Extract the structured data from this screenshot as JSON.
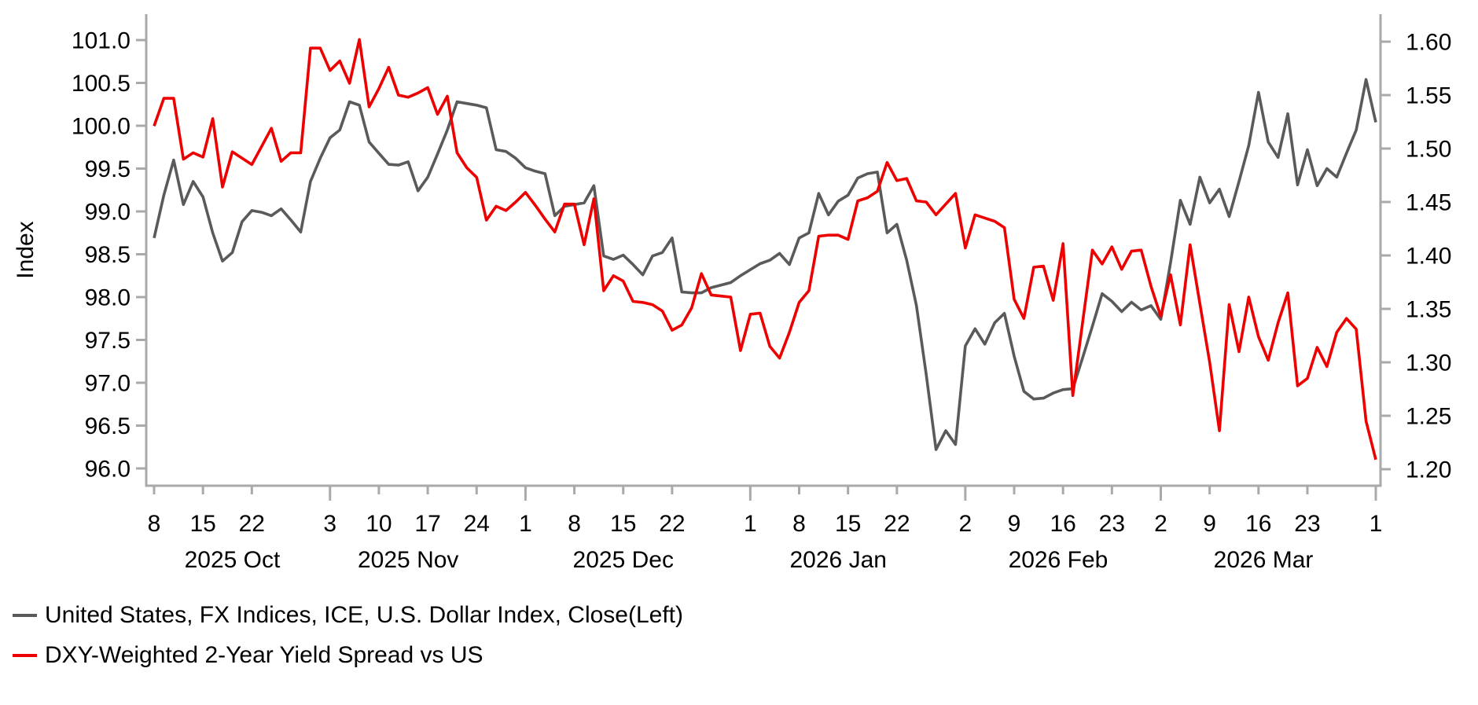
{
  "chart_data": {
    "type": "line",
    "title": "",
    "grid": false,
    "legend_position": "bottom-left",
    "plot": {
      "axis_color": "#a9a9a9",
      "text_color": "#000000"
    },
    "left_axis": {
      "label": "Index",
      "range": [
        96.0,
        101.0
      ],
      "tick_values": [
        101.0,
        100.5,
        100.0,
        99.5,
        99.0,
        98.5,
        98.0,
        97.5,
        97.0,
        96.5,
        96.0
      ],
      "tick_labels": [
        "101.0",
        "100.5",
        "100.0",
        "99.5",
        "99.0",
        "98.5",
        "98.0",
        "97.5",
        "97.0",
        "96.5",
        "96.0"
      ]
    },
    "right_axis": {
      "label": "",
      "range": [
        1.2,
        1.6
      ],
      "tick_values": [
        1.6,
        1.55,
        1.5,
        1.45,
        1.4,
        1.35,
        1.3,
        1.25,
        1.2
      ],
      "tick_labels": [
        "1.60",
        "1.55",
        "1.50",
        "1.45",
        "1.40",
        "1.35",
        "1.30",
        "1.25",
        "1.20"
      ]
    },
    "x_axis": {
      "unit": "business-day-index",
      "range_days": [
        0,
        125
      ],
      "ticks": [
        {
          "d": 0,
          "label": "8",
          "major": false
        },
        {
          "d": 5,
          "label": "15",
          "major": false
        },
        {
          "d": 10,
          "label": "22",
          "major": false
        },
        {
          "d": 18,
          "label": "3",
          "major": true
        },
        {
          "d": 23,
          "label": "10",
          "major": false
        },
        {
          "d": 28,
          "label": "17",
          "major": false
        },
        {
          "d": 33,
          "label": "24",
          "major": false
        },
        {
          "d": 38,
          "label": "1",
          "major": true
        },
        {
          "d": 43,
          "label": "8",
          "major": false
        },
        {
          "d": 48,
          "label": "15",
          "major": false
        },
        {
          "d": 53,
          "label": "22",
          "major": false
        },
        {
          "d": 61,
          "label": "1",
          "major": true
        },
        {
          "d": 66,
          "label": "8",
          "major": false
        },
        {
          "d": 71,
          "label": "15",
          "major": false
        },
        {
          "d": 76,
          "label": "22",
          "major": false
        },
        {
          "d": 83,
          "label": "2",
          "major": true
        },
        {
          "d": 88,
          "label": "9",
          "major": false
        },
        {
          "d": 93,
          "label": "16",
          "major": false
        },
        {
          "d": 98,
          "label": "23",
          "major": false
        },
        {
          "d": 103,
          "label": "2",
          "major": true
        },
        {
          "d": 108,
          "label": "9",
          "major": false
        },
        {
          "d": 113,
          "label": "16",
          "major": false
        },
        {
          "d": 118,
          "label": "23",
          "major": false
        },
        {
          "d": 125,
          "label": "1",
          "major": true
        }
      ],
      "month_labels": [
        {
          "label": "2025 Oct",
          "center_d": 8
        },
        {
          "label": "2025 Nov",
          "center_d": 26
        },
        {
          "label": "2025 Dec",
          "center_d": 48
        },
        {
          "label": "2026 Jan",
          "center_d": 70
        },
        {
          "label": "2026 Feb",
          "center_d": 92.5
        },
        {
          "label": "2026 Mar",
          "center_d": 113.5
        }
      ]
    },
    "series": [
      {
        "name": "United States, FX Indices, ICE, U.S. Dollar Index, Close(Left)",
        "axis": "left",
        "color": "#5a5a5a",
        "values": [
          98.69,
          99.19,
          99.6,
          99.08,
          99.35,
          99.17,
          98.75,
          98.42,
          98.52,
          98.88,
          99.01,
          98.99,
          98.95,
          99.03,
          98.9,
          98.76,
          99.35,
          99.62,
          99.86,
          99.95,
          100.28,
          100.24,
          99.81,
          99.68,
          99.55,
          99.54,
          99.58,
          99.24,
          99.4,
          99.67,
          99.95,
          100.28,
          100.26,
          100.24,
          100.21,
          99.72,
          99.7,
          99.62,
          99.51,
          99.47,
          99.44,
          98.95,
          99.06,
          99.08,
          99.1,
          99.3,
          98.48,
          98.44,
          98.49,
          98.38,
          98.26,
          98.48,
          98.52,
          98.69,
          98.06,
          98.05,
          98.05,
          98.11,
          98.14,
          98.17,
          98.25,
          98.32,
          98.39,
          98.43,
          98.51,
          98.38,
          98.69,
          98.75,
          99.21,
          98.96,
          99.12,
          99.19,
          99.39,
          99.44,
          99.46,
          98.75,
          98.85,
          98.43,
          97.9,
          97.1,
          96.22,
          96.44,
          96.28,
          97.43,
          97.63,
          97.45,
          97.7,
          97.81,
          97.31,
          96.9,
          96.81,
          96.82,
          96.88,
          96.92,
          96.93,
          97.29,
          97.66,
          98.04,
          97.95,
          97.83,
          97.94,
          97.85,
          97.9,
          97.74,
          98.4,
          99.13,
          98.85,
          99.4,
          99.1,
          99.26,
          98.94,
          99.35,
          99.77,
          100.39,
          99.81,
          99.63,
          100.14,
          99.31,
          99.72,
          99.3,
          99.5,
          99.4,
          99.68,
          99.95,
          100.54,
          100.04
        ]
      },
      {
        "name": "DXY-Weighted 2-Year Yield Spread vs US",
        "axis": "right",
        "color": "#ed0000",
        "values": [
          1.521,
          1.547,
          1.547,
          1.49,
          1.496,
          1.492,
          1.528,
          1.464,
          1.497,
          1.491,
          1.485,
          1.502,
          1.519,
          1.488,
          1.496,
          1.496,
          1.594,
          1.594,
          1.573,
          1.582,
          1.561,
          1.602,
          1.539,
          1.556,
          1.576,
          1.55,
          1.548,
          1.552,
          1.557,
          1.532,
          1.549,
          1.496,
          1.482,
          1.473,
          1.433,
          1.446,
          1.442,
          1.45,
          1.459,
          1.447,
          1.434,
          1.422,
          1.448,
          1.448,
          1.41,
          1.453,
          1.367,
          1.381,
          1.376,
          1.357,
          1.356,
          1.354,
          1.348,
          1.33,
          1.335,
          1.351,
          1.383,
          1.363,
          1.362,
          1.361,
          1.311,
          1.345,
          1.346,
          1.315,
          1.304,
          1.328,
          1.356,
          1.367,
          1.418,
          1.419,
          1.419,
          1.415,
          1.451,
          1.454,
          1.46,
          1.487,
          1.47,
          1.472,
          1.451,
          1.45,
          1.438,
          1.448,
          1.458,
          1.407,
          1.438,
          1.435,
          1.432,
          1.426,
          1.359,
          1.341,
          1.389,
          1.39,
          1.358,
          1.411,
          1.269,
          1.337,
          1.405,
          1.392,
          1.408,
          1.387,
          1.404,
          1.405,
          1.371,
          1.343,
          1.382,
          1.335,
          1.41,
          1.355,
          1.3,
          1.236,
          1.354,
          1.31,
          1.361,
          1.324,
          1.302,
          1.337,
          1.365,
          1.278,
          1.285,
          1.314,
          1.296,
          1.328,
          1.341,
          1.331,
          1.245,
          1.209
        ]
      }
    ]
  },
  "legend": {
    "items": [
      {
        "label": "United States, FX Indices, ICE, U.S. Dollar Index, Close(Left)"
      },
      {
        "label": "DXY-Weighted 2-Year Yield Spread vs US"
      }
    ]
  }
}
